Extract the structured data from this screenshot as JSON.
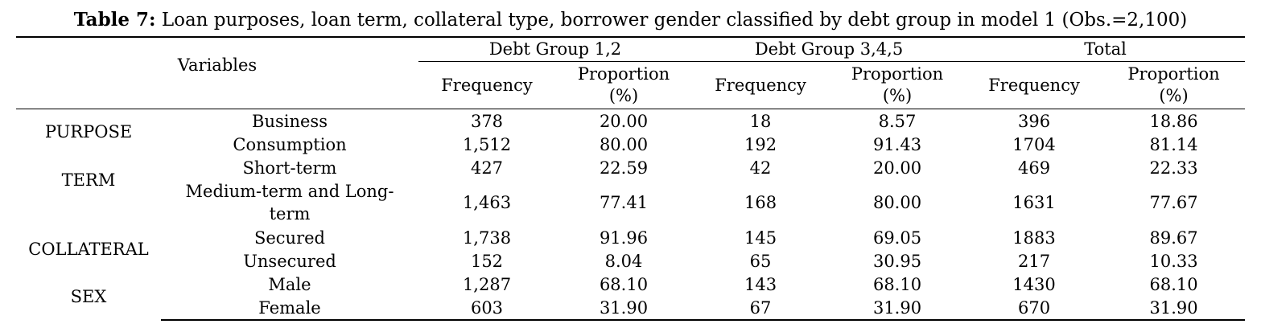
{
  "caption": {
    "bold": "Table 7:",
    "text": " Loan purposes, loan term, collateral type, borrower gender classified by debt group in model 1 (Obs.=2,100)"
  },
  "headers": {
    "variables": "Variables",
    "groups": [
      "Debt Group 1,2",
      "Debt Group 3,4,5",
      "Total"
    ],
    "frequency": "Frequency",
    "proportion_line1": "Proportion",
    "proportion_line2": "(%)"
  },
  "categories": [
    {
      "name": "PURPOSE",
      "rows": [
        {
          "label": "Business",
          "values": [
            "378",
            "20.00",
            "18",
            "8.57",
            "396",
            "18.86"
          ]
        },
        {
          "label": "Consumption",
          "values": [
            "1,512",
            "80.00",
            "192",
            "91.43",
            "1704",
            "81.14"
          ]
        }
      ]
    },
    {
      "name": "TERM",
      "rows": [
        {
          "label": "Short-term",
          "values": [
            "427",
            "22.59",
            "42",
            "20.00",
            "469",
            "22.33"
          ]
        },
        {
          "label": "Medium-term and Long-",
          "label_line2": "term",
          "values": [
            "1,463",
            "77.41",
            "168",
            "80.00",
            "1631",
            "77.67"
          ]
        }
      ]
    },
    {
      "name": "COLLATERAL",
      "rows": [
        {
          "label": "Secured",
          "values": [
            "1,738",
            "91.96",
            "145",
            "69.05",
            "1883",
            "89.67"
          ]
        },
        {
          "label": "Unsecured",
          "values": [
            "152",
            "8.04",
            "65",
            "30.95",
            "217",
            "10.33"
          ]
        }
      ]
    },
    {
      "name": "SEX",
      "rows": [
        {
          "label": "Male",
          "values": [
            "1,287",
            "68.10",
            "143",
            "68.10",
            "1430",
            "68.10"
          ]
        },
        {
          "label": "Female",
          "values": [
            "603",
            "31.90",
            "67",
            "31.90",
            "670",
            "31.90"
          ]
        }
      ]
    }
  ]
}
